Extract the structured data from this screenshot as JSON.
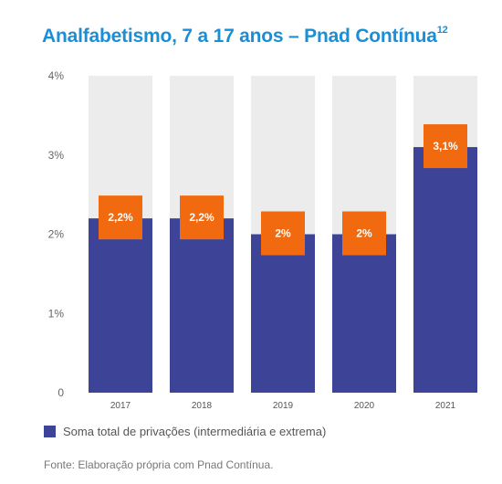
{
  "title": "Analfabetismo, 7 a 17 anos – Pnad Contínua",
  "title_superscript": "12",
  "chart_data": {
    "type": "bar",
    "categories": [
      "2017",
      "2018",
      "2019",
      "2020",
      "2021"
    ],
    "series": [
      {
        "name": "Soma total de privações (intermediária e extrema)",
        "values": [
          2.2,
          2.2,
          2.0,
          2.0,
          3.1
        ],
        "labels": [
          "2,2%",
          "2,2%",
          "2%",
          "2%",
          "3,1%"
        ]
      }
    ],
    "ylim": [
      0,
      4
    ],
    "yticks": [
      0,
      1,
      2,
      3,
      4
    ],
    "ytick_labels": [
      "0",
      "1%",
      "2%",
      "3%",
      "4%"
    ],
    "legend_position": "bottom-left",
    "grid": false
  },
  "colors": {
    "title": "#1a8fd8",
    "bar": "#3d4497",
    "track": "#ececec",
    "label_box": "#f26a0f"
  },
  "source": "Fonte: Elaboração própria com Pnad Contínua."
}
